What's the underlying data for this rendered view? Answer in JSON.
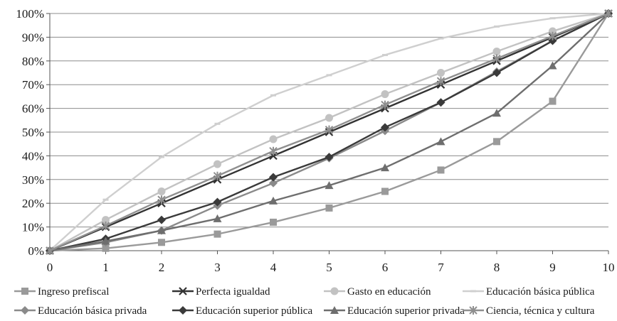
{
  "chart_data": {
    "type": "line",
    "x": [
      0,
      1,
      2,
      3,
      4,
      5,
      6,
      7,
      8,
      9,
      10
    ],
    "ylim": [
      0,
      1
    ],
    "xlim": [
      0,
      10
    ],
    "y_tick_labels": [
      "0%",
      "10%",
      "20%",
      "30%",
      "40%",
      "50%",
      "60%",
      "70%",
      "80%",
      "90%",
      "100%"
    ],
    "x_tick_labels": [
      "0",
      "1",
      "2",
      "3",
      "4",
      "5",
      "6",
      "7",
      "8",
      "9",
      "10"
    ],
    "grid": "horizontal",
    "legend_position": "bottom",
    "series": [
      {
        "name": "Ingreso prefiscal",
        "color": "#9a9a9a",
        "marker": "square",
        "values": [
          0,
          0.01,
          0.035,
          0.07,
          0.12,
          0.18,
          0.25,
          0.34,
          0.46,
          0.63,
          1.0
        ]
      },
      {
        "name": "Perfecta igualdad",
        "color": "#333333",
        "marker": "x",
        "values": [
          0,
          0.1,
          0.2,
          0.3,
          0.4,
          0.5,
          0.6,
          0.7,
          0.8,
          0.9,
          1.0
        ]
      },
      {
        "name": "Gasto en educación",
        "color": "#c2c2c2",
        "marker": "circle",
        "values": [
          0,
          0.13,
          0.25,
          0.365,
          0.47,
          0.56,
          0.66,
          0.75,
          0.84,
          0.925,
          1.0
        ]
      },
      {
        "name": "Educación  básica pública",
        "color": "#cfcfcf",
        "marker": "dash",
        "values": [
          0,
          0.215,
          0.395,
          0.535,
          0.655,
          0.74,
          0.825,
          0.895,
          0.945,
          0.98,
          1.0
        ]
      },
      {
        "name": "Educación básica privada",
        "color": "#8a8a8a",
        "marker": "diamond",
        "values": [
          0,
          0.035,
          0.085,
          0.19,
          0.285,
          0.39,
          0.505,
          0.625,
          0.755,
          0.885,
          1.0
        ]
      },
      {
        "name": "Educación superior pública",
        "color": "#3a3a3a",
        "marker": "diamond",
        "values": [
          0,
          0.05,
          0.13,
          0.205,
          0.31,
          0.395,
          0.52,
          0.625,
          0.75,
          0.885,
          1.0
        ]
      },
      {
        "name": "Educación superior privada",
        "color": "#6e6e6e",
        "marker": "triangle",
        "values": [
          0,
          0.04,
          0.085,
          0.135,
          0.21,
          0.275,
          0.35,
          0.46,
          0.58,
          0.78,
          1.0
        ]
      },
      {
        "name": "Ciencia, técnica y cultura",
        "color": "#8f8f8f",
        "marker": "star",
        "values": [
          0,
          0.105,
          0.215,
          0.315,
          0.42,
          0.51,
          0.615,
          0.715,
          0.81,
          0.905,
          1.0
        ]
      }
    ]
  }
}
